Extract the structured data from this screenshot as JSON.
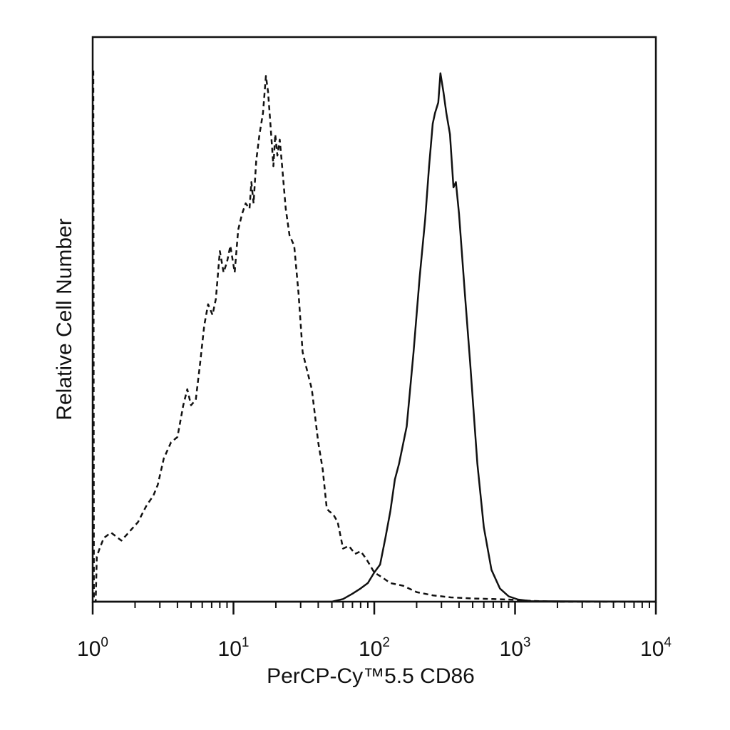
{
  "chart_data": {
    "type": "line",
    "title": "",
    "xlabel": "PerCP-Cy™5.5 CD86",
    "ylabel": "Relative Cell Number",
    "x_scale": "log",
    "xlim": [
      1,
      10000
    ],
    "ylim": [
      0,
      100
    ],
    "grid": false,
    "legend": "none",
    "x_ticks": [
      {
        "value": 1,
        "base": "10",
        "exp": "0"
      },
      {
        "value": 10,
        "base": "10",
        "exp": "1"
      },
      {
        "value": 100,
        "base": "10",
        "exp": "2"
      },
      {
        "value": 1000,
        "base": "10",
        "exp": "3"
      },
      {
        "value": 10000,
        "base": "10",
        "exp": "4"
      }
    ],
    "series": [
      {
        "style": "dashed",
        "color": "#111111",
        "points": [
          [
            1.01,
            100
          ],
          [
            1.02,
            0
          ],
          [
            1.05,
            0
          ],
          [
            1.07,
            8.5
          ],
          [
            1.12,
            10
          ],
          [
            1.2,
            12
          ],
          [
            1.35,
            13
          ],
          [
            1.6,
            11.5
          ],
          [
            1.8,
            13
          ],
          [
            2.1,
            15
          ],
          [
            2.4,
            18
          ],
          [
            2.7,
            20
          ],
          [
            2.9,
            22
          ],
          [
            3.2,
            27
          ],
          [
            3.6,
            30
          ],
          [
            4.0,
            31
          ],
          [
            4.4,
            37
          ],
          [
            4.7,
            40
          ],
          [
            5.0,
            37
          ],
          [
            5.4,
            38
          ],
          [
            5.8,
            45
          ],
          [
            6.2,
            52
          ],
          [
            6.6,
            56
          ],
          [
            7.1,
            54
          ],
          [
            7.5,
            57
          ],
          [
            8.0,
            66
          ],
          [
            8.5,
            62
          ],
          [
            9.0,
            64
          ],
          [
            9.5,
            67
          ],
          [
            10.2,
            62
          ],
          [
            10.8,
            70
          ],
          [
            11.5,
            73
          ],
          [
            12.2,
            75
          ],
          [
            13.0,
            74
          ],
          [
            13.4,
            79
          ],
          [
            13.9,
            75
          ],
          [
            14.5,
            83
          ],
          [
            15.3,
            88
          ],
          [
            16.2,
            92
          ],
          [
            17.0,
            99
          ],
          [
            17.6,
            96
          ],
          [
            18.3,
            90
          ],
          [
            19.2,
            82
          ],
          [
            19.8,
            88
          ],
          [
            20.5,
            84
          ],
          [
            21.3,
            87
          ],
          [
            22.0,
            83
          ],
          [
            23.5,
            74
          ],
          [
            25.0,
            69
          ],
          [
            27.0,
            67
          ],
          [
            29.0,
            58
          ],
          [
            31.0,
            47
          ],
          [
            33.0,
            44
          ],
          [
            36.0,
            40
          ],
          [
            40.0,
            30
          ],
          [
            43.0,
            25
          ],
          [
            46.0,
            17.5
          ],
          [
            48.0,
            17
          ],
          [
            51.0,
            16.5
          ],
          [
            55.0,
            15
          ],
          [
            60.0,
            10
          ],
          [
            66.0,
            10.5
          ],
          [
            73.0,
            9
          ],
          [
            80.0,
            9.5
          ],
          [
            88.0,
            8
          ],
          [
            100.0,
            5.5
          ],
          [
            115.0,
            4.5
          ],
          [
            130.0,
            3.5
          ],
          [
            160.0,
            3
          ],
          [
            200.0,
            1.8
          ],
          [
            260.0,
            1.2
          ],
          [
            350.0,
            0.8
          ],
          [
            500.0,
            0.6
          ],
          [
            700.0,
            0.5
          ],
          [
            900.0,
            0.4
          ],
          [
            1200.0,
            0.2
          ],
          [
            1500.0,
            0.1
          ],
          [
            2000.0,
            0
          ],
          [
            10000,
            0
          ]
        ]
      },
      {
        "style": "solid",
        "color": "#111111",
        "points": [
          [
            1.0,
            0
          ],
          [
            50.0,
            0
          ],
          [
            60.0,
            0.5
          ],
          [
            70.0,
            1.5
          ],
          [
            80.0,
            2.5
          ],
          [
            90.0,
            3.5
          ],
          [
            100.0,
            5.5
          ],
          [
            110.0,
            7.0
          ],
          [
            120.0,
            12
          ],
          [
            130.0,
            17
          ],
          [
            140.0,
            23
          ],
          [
            150.0,
            26
          ],
          [
            170.0,
            33
          ],
          [
            190.0,
            47
          ],
          [
            210.0,
            61
          ],
          [
            230.0,
            72
          ],
          [
            245.0,
            82
          ],
          [
            260.0,
            90
          ],
          [
            270.0,
            92
          ],
          [
            285.0,
            94
          ],
          [
            295.0,
            99.5
          ],
          [
            310.0,
            96
          ],
          [
            325.0,
            92
          ],
          [
            345.0,
            88
          ],
          [
            365.0,
            78
          ],
          [
            380.0,
            79
          ],
          [
            400.0,
            73
          ],
          [
            440.0,
            58
          ],
          [
            480.0,
            45
          ],
          [
            540.0,
            26
          ],
          [
            600.0,
            14
          ],
          [
            680.0,
            6
          ],
          [
            780.0,
            2.5
          ],
          [
            900.0,
            1
          ],
          [
            1050.0,
            0.4
          ],
          [
            1300.0,
            0.1
          ],
          [
            10000,
            0
          ]
        ]
      }
    ]
  }
}
